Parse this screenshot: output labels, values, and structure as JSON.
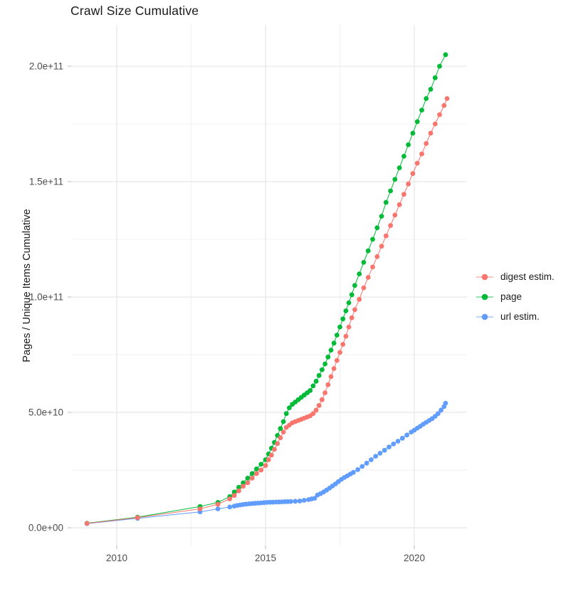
{
  "title": "Crawl Size Cumulative",
  "y_axis_title": "Pages / Unique Items Cumulative",
  "legend": {
    "items": [
      {
        "label": "digest estim.",
        "color": "#F8766D"
      },
      {
        "label": "page",
        "color": "#00BA38"
      },
      {
        "label": "url estim.",
        "color": "#619CFF"
      }
    ]
  },
  "colors": {
    "background": "#ffffff",
    "grid_major": "#e3e3e3",
    "grid_minor": "#f1f1f1",
    "tick_mark": "#c5c5c5",
    "axis_text": "#4d4d4d",
    "digest": "#F8766D",
    "page": "#00BA38",
    "url": "#619CFF"
  },
  "chart_data": {
    "type": "line",
    "title": "Crawl Size Cumulative",
    "xlabel": "",
    "ylabel": "Pages / Unique Items Cumulative",
    "legend_position": "right",
    "grid": true,
    "value_unit": "1e9 (values below are in billions; axis shows scientific notation)",
    "xlim": [
      2008.47,
      2021.77
    ],
    "ylim_e9": [
      -7.7,
      217.9
    ],
    "x_ticks": [
      2010,
      2015,
      2020
    ],
    "x_tick_labels": [
      "2010",
      "2015",
      "2020"
    ],
    "x_minor_ticks": [
      2012.5,
      2017.5
    ],
    "y_ticks_e9": [
      0,
      50,
      100,
      150,
      200
    ],
    "y_tick_labels": [
      "0.0e+00",
      "5.0e+10",
      "1.0e+11",
      "1.5e+11",
      "2.0e+11"
    ],
    "y_minor_ticks_e9": [
      25,
      75,
      125,
      175
    ],
    "series": [
      {
        "name": "url estim.",
        "color": "#619CFF",
        "points": [
          [
            2009.0,
            1.8
          ],
          [
            2010.7,
            4.1
          ],
          [
            2012.8,
            6.9
          ],
          [
            2013.4,
            8.2
          ],
          [
            2013.8,
            9.0
          ],
          [
            2013.95,
            9.4
          ],
          [
            2014.05,
            9.7
          ],
          [
            2014.15,
            9.9
          ],
          [
            2014.25,
            10.1
          ],
          [
            2014.35,
            10.25
          ],
          [
            2014.45,
            10.4
          ],
          [
            2014.55,
            10.5
          ],
          [
            2014.65,
            10.6
          ],
          [
            2014.75,
            10.7
          ],
          [
            2014.85,
            10.8
          ],
          [
            2014.95,
            10.9
          ],
          [
            2015.05,
            11.0
          ],
          [
            2015.15,
            11.05
          ],
          [
            2015.25,
            11.1
          ],
          [
            2015.35,
            11.15
          ],
          [
            2015.45,
            11.2
          ],
          [
            2015.55,
            11.25
          ],
          [
            2015.65,
            11.3
          ],
          [
            2015.75,
            11.35
          ],
          [
            2015.85,
            11.4
          ],
          [
            2016.0,
            11.5
          ],
          [
            2016.15,
            11.6
          ],
          [
            2016.3,
            11.9
          ],
          [
            2016.45,
            12.2
          ],
          [
            2016.55,
            12.5
          ],
          [
            2016.65,
            12.8
          ],
          [
            2016.75,
            14.2
          ],
          [
            2016.85,
            14.8
          ],
          [
            2016.95,
            15.5
          ],
          [
            2017.05,
            16.3
          ],
          [
            2017.15,
            17.2
          ],
          [
            2017.25,
            18.1
          ],
          [
            2017.35,
            19.0
          ],
          [
            2017.45,
            20.0
          ],
          [
            2017.55,
            21.0
          ],
          [
            2017.65,
            21.8
          ],
          [
            2017.75,
            22.5
          ],
          [
            2017.85,
            23.3
          ],
          [
            2017.95,
            24.0
          ],
          [
            2018.1,
            25.2
          ],
          [
            2018.25,
            26.6
          ],
          [
            2018.4,
            28.0
          ],
          [
            2018.55,
            29.5
          ],
          [
            2018.7,
            31.0
          ],
          [
            2018.85,
            32.3
          ],
          [
            2019.0,
            33.6
          ],
          [
            2019.15,
            35.0
          ],
          [
            2019.3,
            36.3
          ],
          [
            2019.45,
            37.5
          ],
          [
            2019.6,
            38.8
          ],
          [
            2019.75,
            40.2
          ],
          [
            2019.9,
            41.5
          ],
          [
            2020.0,
            42.3
          ],
          [
            2020.1,
            43.2
          ],
          [
            2020.2,
            44.0
          ],
          [
            2020.3,
            44.9
          ],
          [
            2020.4,
            45.7
          ],
          [
            2020.5,
            46.5
          ],
          [
            2020.6,
            47.3
          ],
          [
            2020.7,
            48.3
          ],
          [
            2020.8,
            49.5
          ],
          [
            2020.9,
            51.0
          ],
          [
            2021.0,
            52.5
          ],
          [
            2021.05,
            54.0
          ]
        ]
      },
      {
        "name": "page",
        "color": "#00BA38",
        "points": [
          [
            2009.0,
            2.0
          ],
          [
            2010.7,
            4.6
          ],
          [
            2012.8,
            9.2
          ],
          [
            2013.4,
            11.0
          ],
          [
            2013.8,
            13.5
          ],
          [
            2013.95,
            15.5
          ],
          [
            2014.1,
            17.5
          ],
          [
            2014.25,
            19.5
          ],
          [
            2014.4,
            21.5
          ],
          [
            2014.55,
            23.5
          ],
          [
            2014.7,
            25.5
          ],
          [
            2014.85,
            27.5
          ],
          [
            2015.0,
            29.5
          ],
          [
            2015.1,
            32
          ],
          [
            2015.2,
            34.5
          ],
          [
            2015.3,
            37
          ],
          [
            2015.4,
            40
          ],
          [
            2015.5,
            43
          ],
          [
            2015.6,
            46
          ],
          [
            2015.7,
            49.5
          ],
          [
            2015.8,
            52
          ],
          [
            2015.9,
            53.5
          ],
          [
            2016.0,
            54.5
          ],
          [
            2016.1,
            55.5
          ],
          [
            2016.2,
            56.5
          ],
          [
            2016.3,
            57.5
          ],
          [
            2016.4,
            58.5
          ],
          [
            2016.5,
            59.5
          ],
          [
            2016.6,
            61.5
          ],
          [
            2016.7,
            63.5
          ],
          [
            2016.8,
            66
          ],
          [
            2016.9,
            68.5
          ],
          [
            2017.0,
            71
          ],
          [
            2017.1,
            74
          ],
          [
            2017.2,
            77
          ],
          [
            2017.3,
            80
          ],
          [
            2017.4,
            83.5
          ],
          [
            2017.5,
            87
          ],
          [
            2017.6,
            90.5
          ],
          [
            2017.7,
            94
          ],
          [
            2017.8,
            97.5
          ],
          [
            2017.9,
            101
          ],
          [
            2018.0,
            105
          ],
          [
            2018.15,
            110
          ],
          [
            2018.3,
            115
          ],
          [
            2018.45,
            120
          ],
          [
            2018.6,
            125
          ],
          [
            2018.75,
            130
          ],
          [
            2018.9,
            135
          ],
          [
            2019.05,
            141
          ],
          [
            2019.2,
            146
          ],
          [
            2019.35,
            151
          ],
          [
            2019.5,
            156
          ],
          [
            2019.65,
            161
          ],
          [
            2019.8,
            166
          ],
          [
            2019.95,
            171
          ],
          [
            2020.1,
            176
          ],
          [
            2020.25,
            181
          ],
          [
            2020.4,
            186
          ],
          [
            2020.55,
            190
          ],
          [
            2020.7,
            195
          ],
          [
            2020.85,
            200
          ],
          [
            2021.05,
            205
          ]
        ]
      },
      {
        "name": "digest estim.",
        "color": "#F8766D",
        "points": [
          [
            2009.0,
            1.9
          ],
          [
            2010.7,
            4.4
          ],
          [
            2012.8,
            8.2
          ],
          [
            2013.4,
            10.2
          ],
          [
            2013.8,
            12.5
          ],
          [
            2013.95,
            14
          ],
          [
            2014.1,
            16
          ],
          [
            2014.25,
            18
          ],
          [
            2014.4,
            19.5
          ],
          [
            2014.55,
            21.5
          ],
          [
            2014.7,
            23.5
          ],
          [
            2014.85,
            25
          ],
          [
            2015.0,
            27
          ],
          [
            2015.1,
            29.5
          ],
          [
            2015.2,
            31.5
          ],
          [
            2015.3,
            34
          ],
          [
            2015.4,
            36.5
          ],
          [
            2015.5,
            39
          ],
          [
            2015.6,
            41.5
          ],
          [
            2015.7,
            43.5
          ],
          [
            2015.8,
            44.5
          ],
          [
            2015.9,
            45.5
          ],
          [
            2016.0,
            46
          ],
          [
            2016.1,
            46.5
          ],
          [
            2016.2,
            47
          ],
          [
            2016.3,
            47.5
          ],
          [
            2016.4,
            48
          ],
          [
            2016.5,
            48.5
          ],
          [
            2016.6,
            49.5
          ],
          [
            2016.7,
            51
          ],
          [
            2016.8,
            53
          ],
          [
            2016.9,
            55.5
          ],
          [
            2017.0,
            58.5
          ],
          [
            2017.1,
            62
          ],
          [
            2017.2,
            65.5
          ],
          [
            2017.3,
            69
          ],
          [
            2017.4,
            72.5
          ],
          [
            2017.5,
            76
          ],
          [
            2017.6,
            79.5
          ],
          [
            2017.7,
            83
          ],
          [
            2017.8,
            87
          ],
          [
            2017.9,
            91
          ],
          [
            2018.0,
            94.5
          ],
          [
            2018.15,
            99
          ],
          [
            2018.3,
            104
          ],
          [
            2018.45,
            108.5
          ],
          [
            2018.6,
            113
          ],
          [
            2018.75,
            117.5
          ],
          [
            2018.9,
            122
          ],
          [
            2019.05,
            126.5
          ],
          [
            2019.2,
            131
          ],
          [
            2019.35,
            135.5
          ],
          [
            2019.5,
            140
          ],
          [
            2019.65,
            144.5
          ],
          [
            2019.8,
            149
          ],
          [
            2019.95,
            153.5
          ],
          [
            2020.1,
            158
          ],
          [
            2020.25,
            162
          ],
          [
            2020.4,
            166.5
          ],
          [
            2020.55,
            171
          ],
          [
            2020.7,
            175
          ],
          [
            2020.85,
            179
          ],
          [
            2021.0,
            183
          ],
          [
            2021.1,
            186
          ]
        ]
      }
    ]
  }
}
